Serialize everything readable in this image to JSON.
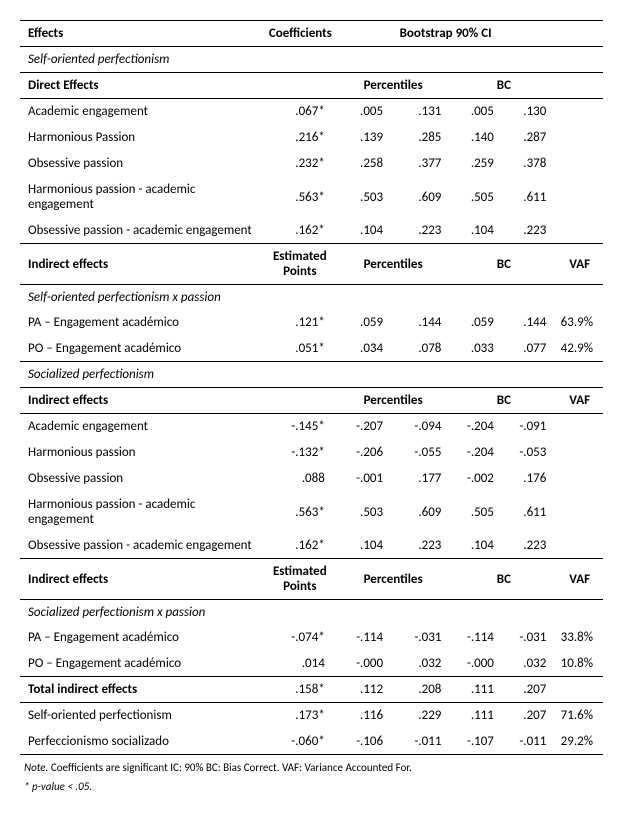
{
  "header": {
    "effects": "Effects",
    "coefficients": "Coefficients",
    "bootstrap": "Bootstrap 90% CI",
    "percentiles": "Percentiles",
    "bc": "BC",
    "vaf": "VAF",
    "estimated_points": "Estimated Points",
    "direct_effects": "Direct Effects",
    "indirect_effects": "Indirect effects",
    "total_indirect": "Total indirect effects"
  },
  "sections": {
    "sop": "Self-oriented perfectionism",
    "sop_x": "Self-oriented perfectionism x passion",
    "socp": "Socialized perfectionism",
    "socp_x": "Socialized perfectionism x passion"
  },
  "rows": {
    "r1": {
      "name": "Academic engagement",
      "coef": ".067*",
      "p1": ".005",
      "p2": ".131",
      "b1": ".005",
      "b2": ".130",
      "vaf": ""
    },
    "r2": {
      "name": "Harmonious Passion",
      "coef": ".216*",
      "p1": ".139",
      "p2": ".285",
      "b1": ".140",
      "b2": ".287",
      "vaf": ""
    },
    "r3": {
      "name": "Obsessive passion",
      "coef": ".232*",
      "p1": ".258",
      "p2": ".377",
      "b1": ".259",
      "b2": ".378",
      "vaf": ""
    },
    "r4": {
      "name": "Harmonious passion - academic engagement",
      "coef": ".563*",
      "p1": ".503",
      "p2": ".609",
      "b1": ".505",
      "b2": ".611",
      "vaf": ""
    },
    "r5": {
      "name": "Obsessive passion - academic engagement",
      "coef": ".162*",
      "p1": ".104",
      "p2": ".223",
      "b1": ".104",
      "b2": ".223",
      "vaf": ""
    },
    "r6": {
      "name": "PA – Engagement académico",
      "coef": ".121*",
      "p1": ".059",
      "p2": ".144",
      "b1": ".059",
      "b2": ".144",
      "vaf": "63.9%"
    },
    "r7": {
      "name": "PO – Engagement académico",
      "coef": ".051*",
      "p1": ".034",
      "p2": ".078",
      "b1": ".033",
      "b2": ".077",
      "vaf": "42.9%"
    },
    "r8": {
      "name": "Academic engagement",
      "coef": "-.145*",
      "p1": "-.207",
      "p2": "-.094",
      "b1": "-.204",
      "b2": "-.091",
      "vaf": ""
    },
    "r9": {
      "name": "Harmonious passion",
      "coef": "-.132*",
      "p1": "-.206",
      "p2": "-.055",
      "b1": "-.204",
      "b2": "-.053",
      "vaf": ""
    },
    "r10": {
      "name": "Obsessive passion",
      "coef": ".088",
      "p1": "-.001",
      "p2": ".177",
      "b1": "-.002",
      "b2": ".176",
      "vaf": ""
    },
    "r11": {
      "name": "Harmonious passion - academic engagement",
      "coef": ".563*",
      "p1": ".503",
      "p2": ".609",
      "b1": ".505",
      "b2": ".611",
      "vaf": ""
    },
    "r12": {
      "name": "Obsessive passion - academic engagement",
      "coef": ".162*",
      "p1": ".104",
      "p2": ".223",
      "b1": ".104",
      "b2": ".223",
      "vaf": ""
    },
    "r13": {
      "name": "PA – Engagement académico",
      "coef": "-.074*",
      "p1": "-.114",
      "p2": "-.031",
      "b1": "-.114",
      "b2": "-.031",
      "vaf": "33.8%"
    },
    "r14": {
      "name": "PO – Engagement académico",
      "coef": ".014",
      "p1": "-.000",
      "p2": ".032",
      "b1": "-.000",
      "b2": ".032",
      "vaf": "10.8%"
    },
    "rt": {
      "name": "Total indirect effects",
      "coef": ".158*",
      "p1": ".112",
      "p2": ".208",
      "b1": ".111",
      "b2": ".207",
      "vaf": ""
    },
    "r15": {
      "name": "Self-oriented perfectionism",
      "coef": ".173*",
      "p1": ".116",
      "p2": ".229",
      "b1": ".111",
      "b2": ".207",
      "vaf": "71.6%"
    },
    "r16": {
      "name": "Perfeccionismo socializado",
      "coef": "-.060*",
      "p1": "-.106",
      "p2": "-.011",
      "b1": "-.107",
      "b2": "-.011",
      "vaf": "29.2%"
    }
  },
  "note": {
    "l1a": "Note.",
    "l1b": " Coefficients are significant IC: 90% BC: Bias Correct. VAF: Variance Accounted For.",
    "l2": "* p-value < .05."
  },
  "style": {
    "text_color": "#000000",
    "background_color": "#ffffff",
    "border_color": "#000000",
    "font_size_body": 13,
    "font_size_note": 11
  }
}
